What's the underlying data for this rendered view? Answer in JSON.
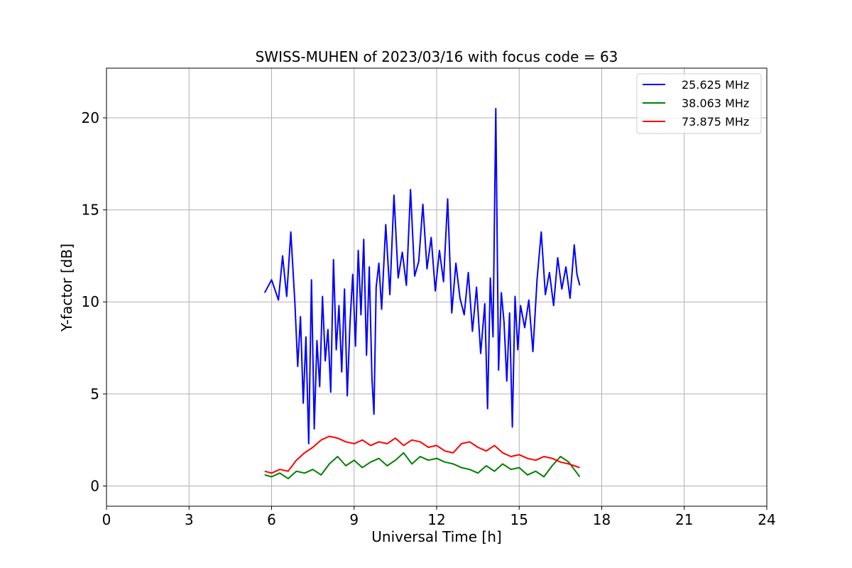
{
  "chart_data": {
    "type": "line",
    "title": "SWISS-MUHEN of 2023/03/16 with focus code = 63",
    "xlabel": "Universal Time [h]",
    "ylabel": "Y-factor [dB]",
    "xlim": [
      0,
      24
    ],
    "ylim": [
      -1.1,
      22.7
    ],
    "xticks": [
      0,
      3,
      6,
      9,
      12,
      15,
      18,
      21,
      24
    ],
    "yticks": [
      0,
      5,
      10,
      15,
      20
    ],
    "grid": true,
    "legend_position": "top-right",
    "series": [
      {
        "name": "25.625 MHz",
        "color": "#0000ff",
        "x": [
          5.75,
          6.0,
          6.25,
          6.4,
          6.55,
          6.7,
          6.85,
          6.95,
          7.05,
          7.15,
          7.25,
          7.35,
          7.45,
          7.55,
          7.65,
          7.75,
          7.85,
          7.95,
          8.05,
          8.15,
          8.25,
          8.35,
          8.45,
          8.55,
          8.65,
          8.75,
          8.85,
          8.95,
          9.05,
          9.15,
          9.25,
          9.35,
          9.45,
          9.55,
          9.65,
          9.72,
          9.8,
          9.9,
          10.0,
          10.15,
          10.3,
          10.45,
          10.6,
          10.75,
          10.9,
          11.05,
          11.2,
          11.35,
          11.5,
          11.65,
          11.8,
          11.95,
          12.1,
          12.25,
          12.4,
          12.55,
          12.7,
          12.85,
          13.0,
          13.15,
          13.3,
          13.45,
          13.6,
          13.75,
          13.85,
          13.95,
          14.05,
          14.15,
          14.25,
          14.35,
          14.45,
          14.55,
          14.65,
          14.75,
          14.85,
          14.95,
          15.05,
          15.2,
          15.35,
          15.5,
          15.65,
          15.8,
          15.95,
          16.1,
          16.25,
          16.4,
          16.55,
          16.7,
          16.85,
          17.0,
          17.1,
          17.2
        ],
        "y": [
          10.5,
          11.2,
          10.1,
          12.5,
          10.3,
          13.8,
          9.9,
          6.5,
          9.2,
          4.5,
          8.1,
          2.3,
          11.2,
          3.1,
          7.9,
          5.4,
          10.3,
          6.8,
          8.5,
          5.1,
          12.3,
          7.4,
          9.8,
          6.2,
          10.7,
          4.9,
          8.8,
          11.5,
          7.6,
          12.8,
          9.3,
          13.4,
          7.1,
          11.9,
          5.8,
          3.9,
          10.8,
          12.1,
          9.6,
          14.2,
          10.4,
          15.8,
          11.3,
          12.7,
          10.9,
          16.1,
          11.4,
          12.2,
          15.3,
          11.8,
          13.5,
          10.6,
          12.8,
          11.1,
          15.6,
          9.4,
          12.1,
          10.2,
          9.3,
          11.6,
          8.4,
          10.8,
          7.2,
          9.9,
          4.2,
          11.3,
          8.1,
          20.5,
          6.3,
          10.5,
          8.9,
          5.7,
          9.4,
          3.2,
          10.3,
          7.4,
          9.8,
          8.6,
          10.1,
          7.3,
          11.2,
          13.8,
          10.4,
          11.6,
          9.8,
          12.4,
          10.7,
          11.9,
          10.2,
          13.1,
          11.5,
          10.9
        ]
      },
      {
        "name": "38.063 MHz",
        "color": "#008000",
        "x": [
          5.75,
          6.0,
          6.3,
          6.6,
          6.9,
          7.2,
          7.5,
          7.8,
          8.1,
          8.4,
          8.7,
          9.0,
          9.3,
          9.6,
          9.9,
          10.2,
          10.5,
          10.8,
          11.1,
          11.4,
          11.7,
          12.0,
          12.3,
          12.6,
          12.9,
          13.2,
          13.5,
          13.8,
          14.1,
          14.4,
          14.7,
          15.0,
          15.3,
          15.6,
          15.9,
          16.2,
          16.5,
          16.8,
          17.0,
          17.2
        ],
        "y": [
          0.6,
          0.5,
          0.7,
          0.4,
          0.8,
          0.7,
          0.9,
          0.6,
          1.2,
          1.6,
          1.1,
          1.4,
          1.0,
          1.3,
          1.5,
          1.1,
          1.4,
          1.8,
          1.2,
          1.6,
          1.4,
          1.5,
          1.3,
          1.2,
          1.0,
          0.9,
          0.7,
          1.1,
          0.8,
          1.2,
          0.9,
          1.0,
          0.6,
          0.8,
          0.5,
          1.1,
          1.6,
          1.3,
          0.9,
          0.5
        ]
      },
      {
        "name": "73.875 MHz",
        "color": "#ff0000",
        "x": [
          5.75,
          6.0,
          6.3,
          6.6,
          6.9,
          7.2,
          7.5,
          7.8,
          8.1,
          8.4,
          8.7,
          9.0,
          9.3,
          9.6,
          9.9,
          10.2,
          10.5,
          10.8,
          11.1,
          11.4,
          11.7,
          12.0,
          12.3,
          12.6,
          12.9,
          13.2,
          13.5,
          13.8,
          14.1,
          14.4,
          14.7,
          15.0,
          15.3,
          15.6,
          15.9,
          16.2,
          16.5,
          16.8,
          17.0,
          17.2
        ],
        "y": [
          0.8,
          0.7,
          0.9,
          0.8,
          1.4,
          1.8,
          2.1,
          2.5,
          2.7,
          2.6,
          2.4,
          2.3,
          2.5,
          2.2,
          2.4,
          2.3,
          2.6,
          2.2,
          2.5,
          2.4,
          2.1,
          2.2,
          1.9,
          1.8,
          2.3,
          2.4,
          2.1,
          1.9,
          2.2,
          1.8,
          1.6,
          1.7,
          1.5,
          1.4,
          1.6,
          1.5,
          1.3,
          1.2,
          1.1,
          1.0
        ]
      }
    ]
  }
}
